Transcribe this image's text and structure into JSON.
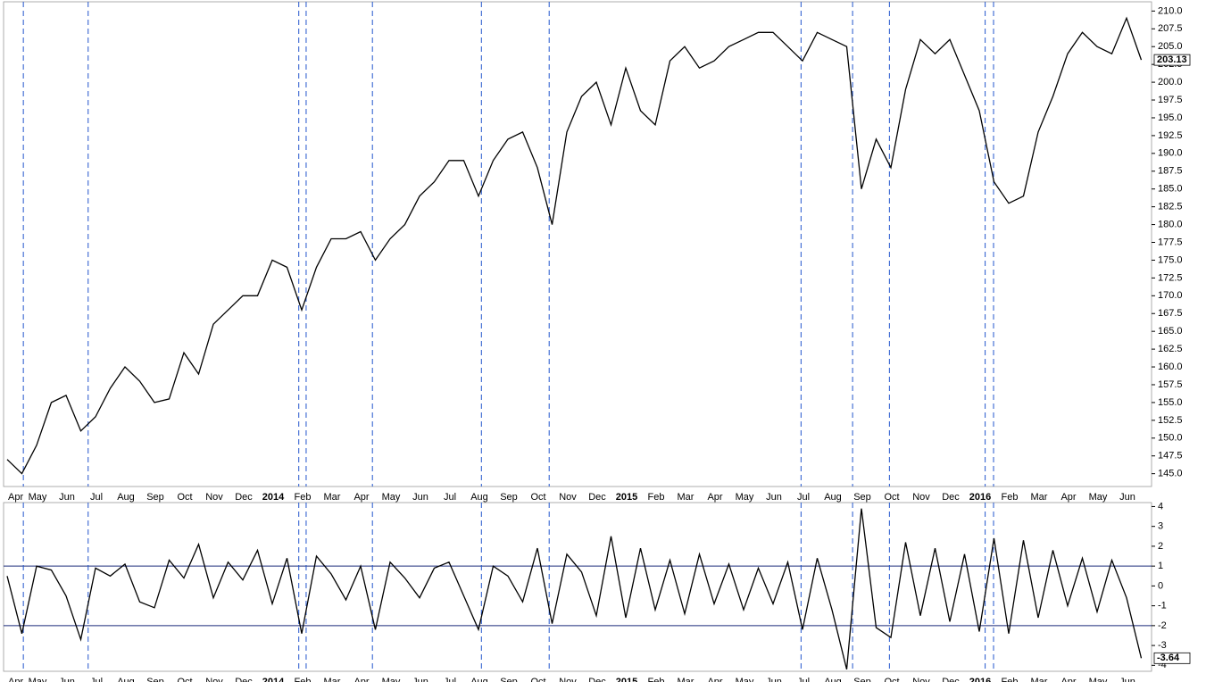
{
  "chart_data": [
    {
      "type": "line",
      "categories": [
        "Apr",
        null,
        "May",
        null,
        "Jun",
        null,
        "Jul",
        null,
        "Aug",
        null,
        "Sep",
        null,
        "Oct",
        null,
        "Nov",
        null,
        "Dec",
        null,
        "2014",
        null,
        "Feb",
        null,
        "Mar",
        null,
        "Apr",
        null,
        "May",
        null,
        "Jun",
        null,
        "Jul",
        null,
        "Aug",
        null,
        "Sep",
        null,
        "Oct",
        null,
        "Nov",
        null,
        "Dec",
        null,
        "2015",
        null,
        "Feb",
        null,
        "Mar",
        null,
        "Apr",
        null,
        "May",
        null,
        "Jun",
        null,
        "Jul",
        null,
        "Aug",
        null,
        "Sep",
        null,
        "Oct",
        null,
        "Nov",
        null,
        "Dec",
        null,
        "2016",
        null,
        "Feb",
        null,
        "Mar",
        null,
        "Apr",
        null,
        "May",
        null,
        "Jun",
        null
      ],
      "values": [
        147,
        145,
        149,
        155,
        156,
        151,
        153,
        157,
        160,
        158,
        155,
        155.5,
        162,
        159,
        166,
        168,
        170,
        170,
        175,
        174,
        168,
        174,
        178,
        178,
        179,
        175,
        178,
        180,
        184,
        186,
        189,
        189,
        184,
        189,
        192,
        193,
        188,
        180,
        193,
        198,
        200,
        194,
        202,
        196,
        194,
        203,
        205,
        202,
        203,
        205,
        206,
        207,
        207,
        205,
        203,
        207,
        206,
        205,
        185,
        192,
        188,
        199,
        206,
        204,
        206,
        201,
        196,
        186,
        183,
        184,
        193,
        198,
        204,
        207,
        205,
        204,
        209,
        203.13
      ],
      "color": "#000000",
      "ylim": [
        143.2,
        211.3
      ],
      "yticks": [
        {
          "value": 145,
          "label": "145.0"
        },
        {
          "value": 147.5,
          "label": "147.5"
        },
        {
          "value": 150,
          "label": "150.0"
        },
        {
          "value": 152.5,
          "label": "152.5"
        },
        {
          "value": 155,
          "label": "155.0"
        },
        {
          "value": 157.5,
          "label": "157.5"
        },
        {
          "value": 160,
          "label": "160.0"
        },
        {
          "value": 162.5,
          "label": "162.5"
        },
        {
          "value": 165,
          "label": "165.0"
        },
        {
          "value": 167.5,
          "label": "167.5"
        },
        {
          "value": 170,
          "label": "170.0"
        },
        {
          "value": 172.5,
          "label": "172.5"
        },
        {
          "value": 175,
          "label": "175.0"
        },
        {
          "value": 177.5,
          "label": "177.5"
        },
        {
          "value": 180,
          "label": "180.0"
        },
        {
          "value": 182.5,
          "label": "182.5"
        },
        {
          "value": 185,
          "label": "185.0"
        },
        {
          "value": 187.5,
          "label": "187.5"
        },
        {
          "value": 190,
          "label": "190.0"
        },
        {
          "value": 192.5,
          "label": "192.5"
        },
        {
          "value": 195,
          "label": "195.0"
        },
        {
          "value": 197.5,
          "label": "197.5"
        },
        {
          "value": 200,
          "label": "200.0"
        },
        {
          "value": 202.5,
          "label": "202.5"
        },
        {
          "value": 205,
          "label": "205.0"
        },
        {
          "value": 207.5,
          "label": "207.5"
        },
        {
          "value": 210,
          "label": "210.0"
        }
      ],
      "markers_x": [
        1.1,
        5.5,
        19.8,
        20.3,
        24.8,
        32.2,
        36.8,
        53.9,
        57.4,
        59.9,
        66.4,
        66.97
      ],
      "marker_color": "#2255cc"
    },
    {
      "type": "line",
      "categories": [
        "Apr",
        null,
        "May",
        null,
        "Jun",
        null,
        "Jul",
        null,
        "Aug",
        null,
        "Sep",
        null,
        "Oct",
        null,
        "Nov",
        null,
        "Dec",
        null,
        "2014",
        null,
        "Feb",
        null,
        "Mar",
        null,
        "Apr",
        null,
        "May",
        null,
        "Jun",
        null,
        "Jul",
        null,
        "Aug",
        null,
        "Sep",
        null,
        "Oct",
        null,
        "Nov",
        null,
        "Dec",
        null,
        "2015",
        null,
        "Feb",
        null,
        "Mar",
        null,
        "Apr",
        null,
        "May",
        null,
        "Jun",
        null,
        "Jul",
        null,
        "Aug",
        null,
        "Sep",
        null,
        "Oct",
        null,
        "Nov",
        null,
        "Dec",
        null,
        "2016",
        null,
        "Feb",
        null,
        "Mar",
        null,
        "Apr",
        null,
        "May",
        null,
        "Jun",
        null
      ],
      "values": [
        0.5,
        -2.4,
        1.0,
        0.8,
        -0.5,
        -2.7,
        0.9,
        0.5,
        1.1,
        -0.8,
        -1.1,
        1.3,
        0.4,
        2.1,
        -0.6,
        1.2,
        0.3,
        1.8,
        -0.9,
        1.4,
        -2.4,
        1.5,
        0.6,
        -0.7,
        1.0,
        -2.2,
        1.2,
        0.4,
        -0.6,
        0.9,
        1.2,
        -0.5,
        -2.2,
        1.0,
        0.5,
        -0.8,
        1.9,
        -1.9,
        1.6,
        0.7,
        -1.5,
        2.5,
        -1.6,
        1.9,
        -1.2,
        1.3,
        -1.4,
        1.6,
        -0.9,
        1.1,
        -1.2,
        0.9,
        -0.9,
        1.2,
        -2.2,
        1.4,
        -1.2,
        -4.2,
        3.9,
        -2.1,
        -2.6,
        2.2,
        -1.5,
        1.9,
        -1.8,
        1.6,
        -2.3,
        2.4,
        -2.4,
        2.3,
        -1.6,
        1.8,
        -1.0,
        1.4,
        -1.3,
        1.3,
        -0.6,
        -3.64
      ],
      "color": "#000000",
      "ylim": [
        -4.3,
        4.2
      ],
      "yticks": [
        -4,
        -3,
        -2,
        -1,
        0,
        1,
        2,
        3,
        4
      ],
      "hlines": [
        1,
        -2
      ],
      "hline_color": "#1a2a7a",
      "markers_x": [
        1.1,
        5.5,
        19.8,
        20.3,
        24.8,
        32.2,
        36.8,
        53.9,
        57.4,
        59.9,
        66.4,
        66.97
      ],
      "marker_color": "#2255cc"
    }
  ]
}
